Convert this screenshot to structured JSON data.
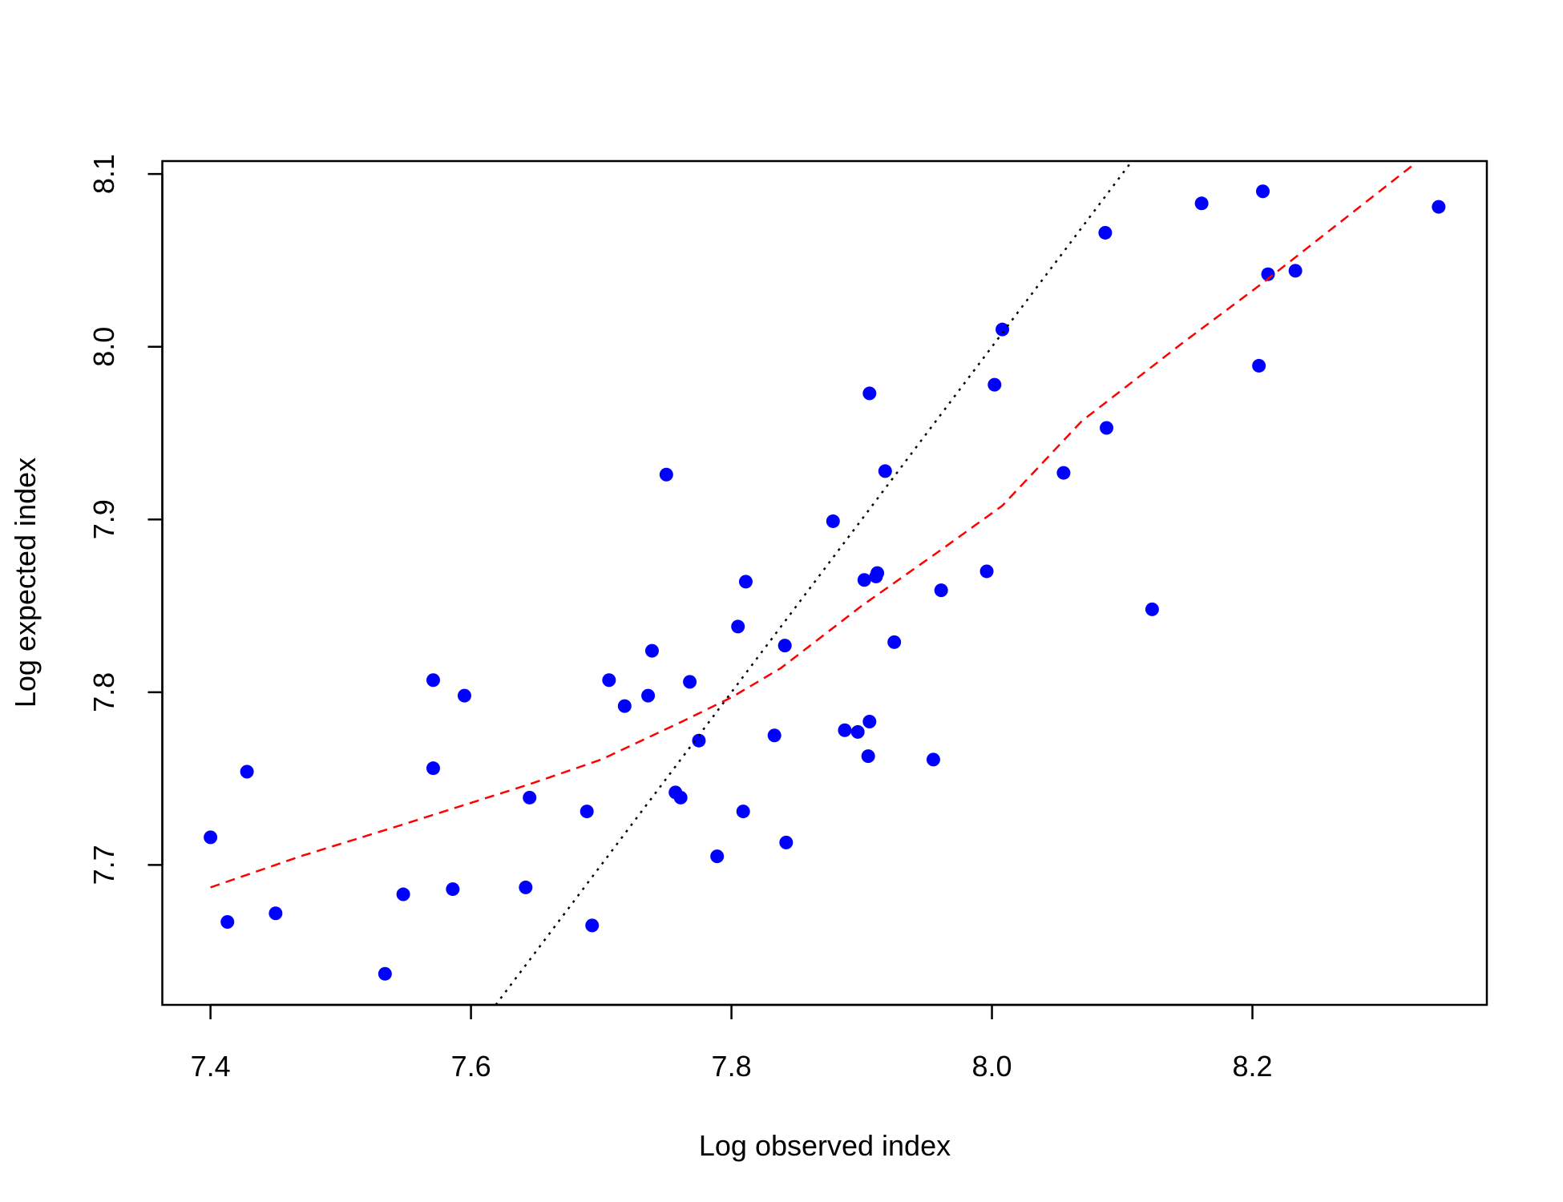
{
  "chart_data": {
    "type": "scatter",
    "xlabel": "Log observed index",
    "ylabel": "Log expected index",
    "xlim": [
      7.363,
      8.38
    ],
    "ylim": [
      7.619,
      8.1075
    ],
    "xticks": [
      {
        "value": 7.4,
        "label": "7.4"
      },
      {
        "value": 7.6,
        "label": "7.6"
      },
      {
        "value": 7.8,
        "label": "7.8"
      },
      {
        "value": 8.0,
        "label": "8.0"
      },
      {
        "value": 8.2,
        "label": "8.2"
      }
    ],
    "yticks": [
      {
        "value": 7.7,
        "label": "7.7"
      },
      {
        "value": 7.8,
        "label": "7.8"
      },
      {
        "value": 7.9,
        "label": "7.9"
      },
      {
        "value": 8.0,
        "label": "8.0"
      },
      {
        "value": 8.1,
        "label": "8.1"
      }
    ],
    "series": [
      {
        "mode": "points",
        "color": "#0000ff",
        "x": [
          7.4,
          7.413,
          7.428,
          7.45,
          7.534,
          7.548,
          7.571,
          7.571,
          7.586,
          7.595,
          7.642,
          7.645,
          7.689,
          7.693,
          7.706,
          7.718,
          7.736,
          7.739,
          7.75,
          7.757,
          7.761,
          7.768,
          7.775,
          7.789,
          7.805,
          7.809,
          7.811,
          7.833,
          7.841,
          7.842,
          7.878,
          7.887,
          7.897,
          7.902,
          7.905,
          7.906,
          7.906,
          7.911,
          7.912,
          7.918,
          7.925,
          7.955,
          7.961,
          7.996,
          8.002,
          8.008,
          8.055,
          8.087,
          8.088,
          8.123,
          8.161,
          8.205,
          8.208,
          8.212,
          8.233,
          8.343
        ],
        "values": [
          7.716,
          7.667,
          7.754,
          7.672,
          7.637,
          7.683,
          7.807,
          7.756,
          7.686,
          7.798,
          7.687,
          7.739,
          7.731,
          7.665,
          7.807,
          7.792,
          7.798,
          7.824,
          7.926,
          7.742,
          7.739,
          7.806,
          7.772,
          7.705,
          7.838,
          7.731,
          7.864,
          7.775,
          7.827,
          7.713,
          7.899,
          7.778,
          7.777,
          7.865,
          7.763,
          7.973,
          7.783,
          7.867,
          7.869,
          7.928,
          7.829,
          7.761,
          7.859,
          7.87,
          7.978,
          8.01,
          7.927,
          8.066,
          7.953,
          7.848,
          8.083,
          7.989,
          8.09,
          8.042,
          8.044,
          8.081
        ]
      },
      {
        "mode": "line",
        "color": "#000000",
        "dash": "dotted",
        "x": [
          7.619,
          8.1075
        ],
        "values": [
          7.619,
          8.1075
        ]
      },
      {
        "mode": "line",
        "color": "#ff0000",
        "dash": "dashed",
        "x": [
          7.4,
          7.469,
          7.546,
          7.646,
          7.7,
          7.762,
          7.8,
          7.838,
          7.9,
          7.962,
          8.008,
          8.069,
          8.146,
          8.208,
          8.323
        ],
        "values": [
          7.687,
          7.705,
          7.723,
          7.747,
          7.761,
          7.783,
          7.797,
          7.814,
          7.85,
          7.883,
          7.908,
          7.957,
          8.002,
          8.037,
          8.105
        ]
      }
    ]
  }
}
